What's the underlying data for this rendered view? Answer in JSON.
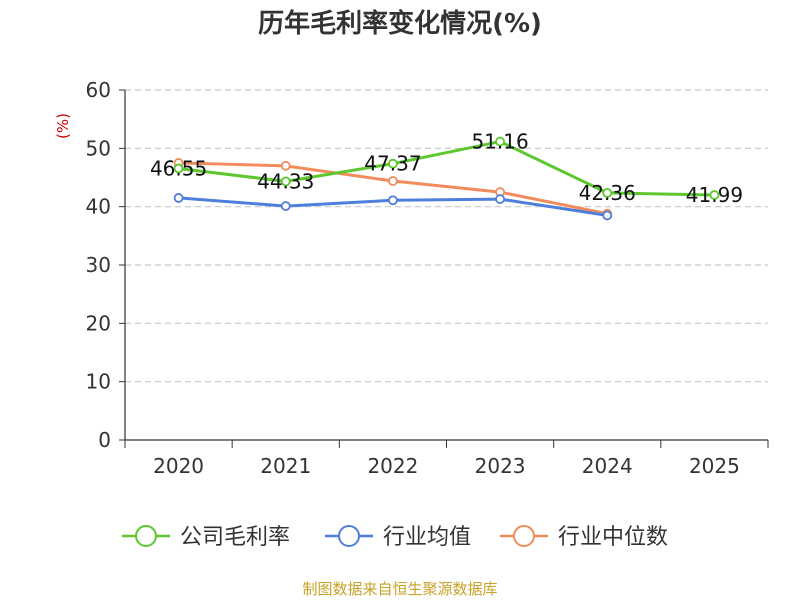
{
  "chart_data": {
    "type": "line",
    "title": "历年毛利率变化情况(%)",
    "ylabel": "(%)",
    "xlabel": "",
    "categories": [
      "2020",
      "2021",
      "2022",
      "2023",
      "2024",
      "2025"
    ],
    "ylim": [
      0,
      60
    ],
    "yticks": [
      0,
      10,
      20,
      30,
      40,
      50,
      60
    ],
    "grid": true,
    "legend_position": "bottom",
    "series": [
      {
        "name": "公司毛利率",
        "color": "#5cc72e",
        "values": [
          46.55,
          44.33,
          47.37,
          51.16,
          42.36,
          41.99
        ],
        "labels": [
          "46.55",
          "44.33",
          "47.37",
          "51.16",
          "42.36",
          "41.99"
        ]
      },
      {
        "name": "行业均值",
        "color": "#4f7fdc",
        "values": [
          41.5,
          40.1,
          41.1,
          41.3,
          38.5,
          null
        ]
      },
      {
        "name": "行业中位数",
        "color": "#f28c5c",
        "values": [
          47.5,
          47.0,
          44.4,
          42.5,
          38.8,
          null
        ]
      }
    ],
    "source": "制图数据来自恒生聚源数据库"
  }
}
